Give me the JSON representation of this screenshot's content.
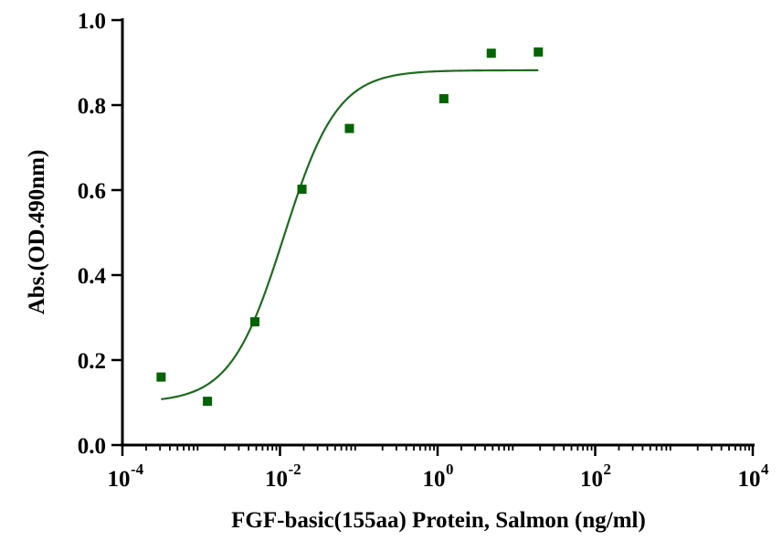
{
  "chart_data": {
    "type": "scatter",
    "title": "",
    "xlabel": "FGF-basic(155aa) Protein, Salmon  (ng/ml)",
    "ylabel": "Abs.(OD.490nm)",
    "x_scale": "log",
    "xlim": [
      0.0001,
      10000
    ],
    "ylim": [
      0,
      1.0
    ],
    "x_ticks": [
      {
        "base": "10",
        "exp": "-4"
      },
      {
        "base": "10",
        "exp": "-2"
      },
      {
        "base": "10",
        "exp": "0"
      },
      {
        "base": "10",
        "exp": "2"
      },
      {
        "base": "10",
        "exp": "4"
      }
    ],
    "y_ticks": [
      "0.0",
      "0.2",
      "0.4",
      "0.6",
      "0.8",
      "1.0"
    ],
    "grid": false,
    "colors": {
      "series": "#006400",
      "curve": "#1e6b1e",
      "axis": "#000000"
    },
    "series": [
      {
        "marker": "square",
        "x": [
          0.00031,
          0.0012,
          0.0048,
          0.019,
          0.076,
          1.2,
          4.8,
          19
        ],
        "y": [
          0.16,
          0.103,
          0.29,
          0.602,
          0.745,
          0.815,
          0.922,
          0.925
        ]
      }
    ],
    "fit_curve": {
      "model": "4PL",
      "bottom": 0.1,
      "top": 0.882,
      "ec50": 0.0112,
      "hill": 1.28,
      "x_range": [
        0.00031,
        19
      ]
    }
  }
}
